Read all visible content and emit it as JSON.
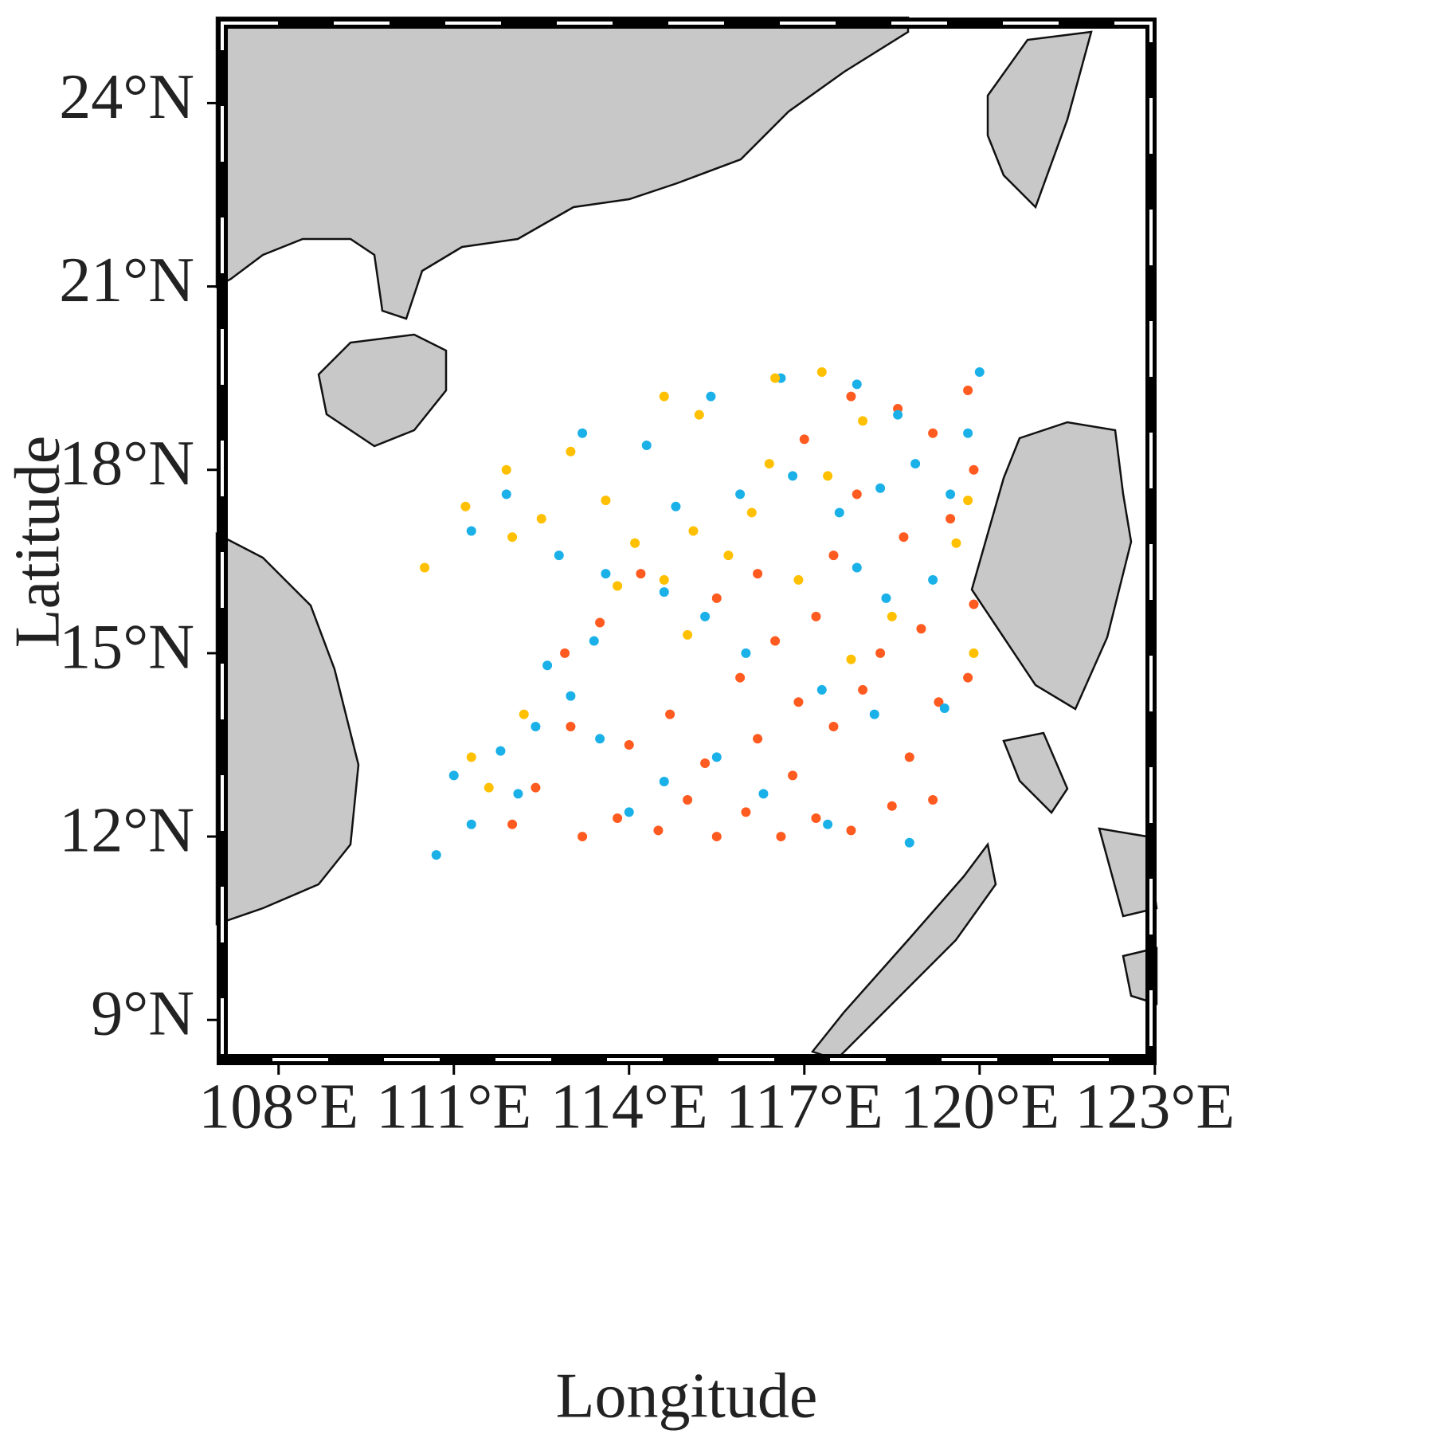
{
  "chart_data": {
    "type": "scatter",
    "xlabel": "Longitude",
    "ylabel": "Latitude",
    "xlim": [
      106.94,
      123.03
    ],
    "ylim": [
      8.26,
      25.4
    ],
    "xticks": [
      {
        "value": 108,
        "label": "108°E"
      },
      {
        "value": 111,
        "label": "111°E"
      },
      {
        "value": 114,
        "label": "114°E"
      },
      {
        "value": 117,
        "label": "117°E"
      },
      {
        "value": 120,
        "label": "120°E"
      },
      {
        "value": 123,
        "label": "123°E"
      }
    ],
    "yticks": [
      {
        "value": 9,
        "label": "9°N"
      },
      {
        "value": 12,
        "label": "12°N"
      },
      {
        "value": 15,
        "label": "15°N"
      },
      {
        "value": 18,
        "label": "18°N"
      },
      {
        "value": 21,
        "label": "21°N"
      },
      {
        "value": 24,
        "label": "24°N"
      }
    ],
    "grid": false,
    "series": [
      {
        "color": "#ff5a1f",
        "x": [
          113.2,
          113.8,
          114.5,
          115.0,
          115.5,
          116.0,
          116.6,
          117.2,
          117.8,
          118.5,
          119.2,
          115.3,
          116.2,
          116.8,
          117.5,
          118.0,
          119.3,
          119.8,
          114.7,
          115.9,
          116.5,
          117.2,
          118.3,
          119.0,
          119.9,
          115.5,
          116.2,
          117.5,
          118.7,
          119.5,
          119.9,
          119.2,
          118.6,
          119.8,
          117.8,
          117.0,
          114.0,
          113.0,
          112.4,
          112.0,
          113.5,
          112.9,
          114.2,
          116.9,
          118.8,
          117.9
        ],
        "values": [
          12.0,
          12.3,
          12.1,
          12.6,
          12.0,
          12.4,
          12.0,
          12.3,
          12.1,
          12.5,
          12.6,
          13.2,
          13.6,
          13.0,
          13.8,
          14.4,
          14.2,
          14.6,
          14.0,
          14.6,
          15.2,
          15.6,
          15.0,
          15.4,
          15.8,
          15.9,
          16.3,
          16.6,
          16.9,
          17.2,
          18.0,
          18.6,
          19.0,
          19.3,
          19.2,
          18.5,
          13.5,
          13.8,
          12.8,
          12.2,
          15.5,
          15.0,
          16.3,
          14.2,
          13.3,
          17.6
        ]
      },
      {
        "color": "#1ab0e8",
        "x": [
          110.7,
          111.3,
          111.0,
          111.8,
          112.4,
          113.0,
          113.5,
          114.0,
          114.6,
          115.5,
          116.3,
          117.4,
          118.8,
          112.6,
          113.4,
          111.3,
          111.9,
          112.8,
          113.6,
          114.6,
          115.3,
          116.0,
          117.3,
          118.2,
          114.8,
          115.9,
          116.8,
          117.6,
          118.3,
          118.9,
          119.5,
          119.8,
          118.6,
          117.9,
          116.6,
          115.4,
          114.3,
          113.2,
          119.2,
          118.4,
          117.9,
          119.4,
          120.0,
          112.1
        ],
        "values": [
          11.7,
          12.2,
          13.0,
          13.4,
          13.8,
          14.3,
          13.6,
          12.4,
          12.9,
          13.3,
          12.7,
          12.2,
          11.9,
          14.8,
          15.2,
          17.0,
          17.6,
          16.6,
          16.3,
          16.0,
          15.6,
          15.0,
          14.4,
          14.0,
          17.4,
          17.6,
          17.9,
          17.3,
          17.7,
          18.1,
          17.6,
          18.6,
          18.9,
          19.4,
          19.5,
          19.2,
          18.4,
          18.6,
          16.2,
          15.9,
          16.4,
          14.1,
          19.6,
          12.7
        ]
      },
      {
        "color": "#ffc000",
        "x": [
          110.5,
          111.2,
          111.9,
          112.5,
          113.0,
          113.6,
          114.1,
          114.6,
          115.1,
          115.7,
          116.1,
          116.4,
          115.2,
          114.6,
          116.5,
          117.3,
          118.0,
          117.4,
          116.9,
          119.6,
          119.8,
          111.3,
          111.6,
          112.2,
          117.8,
          118.5,
          113.8,
          115.0,
          119.9,
          112.0
        ],
        "values": [
          16.4,
          17.4,
          18.0,
          17.2,
          18.3,
          17.5,
          16.8,
          16.2,
          17.0,
          16.6,
          17.3,
          18.1,
          18.9,
          19.2,
          19.5,
          19.6,
          18.8,
          17.9,
          16.2,
          16.8,
          17.5,
          13.3,
          12.8,
          14.0,
          14.9,
          15.6,
          16.1,
          15.3,
          15.0,
          16.9
        ]
      }
    ]
  }
}
